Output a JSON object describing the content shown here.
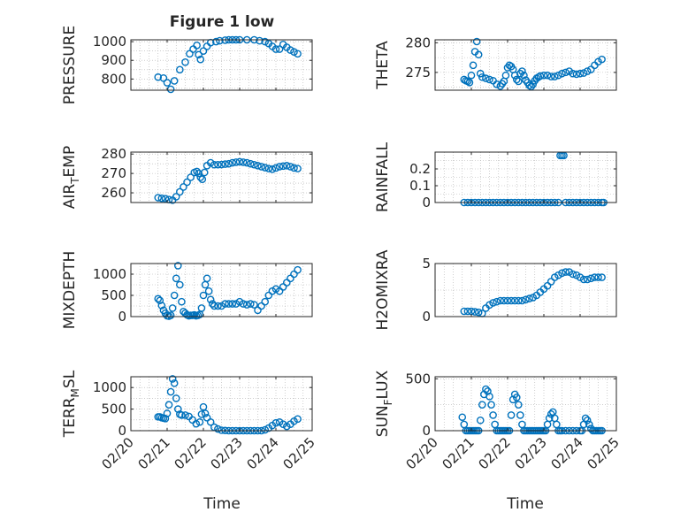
{
  "figure": {
    "title": "Figure 1 low",
    "xlabel_left": "Time",
    "xlabel_right": "Time",
    "colors": {
      "marker": "#0072BD",
      "axis": "#262626",
      "grid": "#b0b0b0",
      "background": "#ffffff"
    }
  },
  "chart_data": [
    {
      "type": "scatter",
      "ylabel": "PRESSURE",
      "xlim": [
        "02/20",
        "02/25"
      ],
      "ylim": [
        740,
        1010
      ],
      "yticks": [
        800,
        900,
        1000
      ],
      "xticks": [
        "02/20",
        "02/21",
        "02/22",
        "02/23",
        "02/24",
        "02/25"
      ],
      "series": [
        {
          "x": [
            20.75,
            20.9,
            21.0,
            21.1,
            21.2,
            21.35,
            21.5,
            21.62,
            21.72,
            21.82,
            21.87,
            21.92,
            22.0,
            22.1,
            22.2,
            22.35,
            22.45,
            22.6,
            22.7,
            22.8,
            22.9,
            23.0,
            23.2,
            23.4,
            23.55,
            23.7,
            23.8,
            23.9,
            24.0,
            24.1,
            24.2,
            24.3,
            24.4,
            24.5,
            24.6
          ],
          "y": [
            810,
            805,
            780,
            745,
            790,
            850,
            890,
            935,
            960,
            980,
            930,
            905,
            950,
            975,
            995,
            1000,
            1005,
            1008,
            1010,
            1010,
            1010,
            1010,
            1010,
            1010,
            1005,
            1000,
            990,
            975,
            960,
            960,
            985,
            970,
            955,
            945,
            935
          ]
        }
      ]
    },
    {
      "type": "scatter",
      "ylabel": "THETA",
      "xlim": [
        "02/20",
        "02/25"
      ],
      "ylim": [
        272,
        280.5
      ],
      "yticks": [
        275,
        280
      ],
      "xticks": [
        "02/20",
        "02/21",
        "02/22",
        "02/23",
        "02/24",
        "02/25"
      ],
      "series": [
        {
          "x": [
            20.8,
            20.85,
            20.9,
            20.95,
            21.0,
            21.05,
            21.1,
            21.15,
            21.2,
            21.25,
            21.3,
            21.4,
            21.5,
            21.6,
            21.7,
            21.8,
            21.85,
            21.9,
            21.95,
            22.0,
            22.05,
            22.1,
            22.15,
            22.2,
            22.25,
            22.3,
            22.35,
            22.4,
            22.45,
            22.5,
            22.55,
            22.6,
            22.65,
            22.7,
            22.75,
            22.8,
            22.85,
            22.9,
            23.0,
            23.1,
            23.2,
            23.3,
            23.4,
            23.5,
            23.6,
            23.7,
            23.8,
            23.9,
            24.0,
            24.1,
            24.2,
            24.3,
            24.4,
            24.5,
            24.6
          ],
          "y": [
            273.8,
            273.6,
            273.5,
            273.3,
            274.5,
            276.2,
            278.5,
            280.2,
            278.0,
            274.8,
            274.2,
            274.0,
            273.8,
            273.6,
            273.0,
            272.7,
            273.1,
            273.5,
            274.5,
            275.8,
            276.2,
            276.0,
            275.5,
            274.5,
            273.8,
            273.5,
            274.8,
            275.2,
            274.5,
            273.7,
            273.3,
            272.8,
            272.6,
            273.0,
            273.6,
            274.0,
            274.2,
            274.4,
            274.5,
            274.5,
            274.3,
            274.3,
            274.5,
            274.8,
            275.0,
            275.2,
            274.8,
            274.7,
            274.8,
            274.9,
            275.2,
            275.5,
            276.2,
            276.8,
            277.2
          ]
        }
      ]
    },
    {
      "type": "scatter",
      "ylabel": "AIR_TEMP",
      "xlim": [
        "02/20",
        "02/25"
      ],
      "ylim": [
        255,
        281
      ],
      "yticks": [
        260,
        270,
        280
      ],
      "xticks": [
        "02/20",
        "02/21",
        "02/22",
        "02/23",
        "02/24",
        "02/25"
      ],
      "series": [
        {
          "x": [
            20.75,
            20.85,
            20.95,
            21.05,
            21.15,
            21.25,
            21.35,
            21.45,
            21.55,
            21.65,
            21.75,
            21.82,
            21.87,
            21.92,
            21.97,
            22.03,
            22.1,
            22.2,
            22.3,
            22.4,
            22.5,
            22.6,
            22.7,
            22.8,
            22.9,
            23.0,
            23.1,
            23.2,
            23.3,
            23.4,
            23.5,
            23.6,
            23.7,
            23.8,
            23.9,
            24.0,
            24.1,
            24.2,
            24.3,
            24.4,
            24.5,
            24.6
          ],
          "y": [
            257.5,
            257.2,
            257.0,
            256.5,
            256.2,
            258.0,
            260.5,
            263.0,
            265.5,
            268.0,
            270.5,
            271.0,
            270.0,
            268.0,
            267.0,
            270.5,
            274.0,
            275.5,
            274.5,
            274.5,
            274.6,
            274.8,
            275.0,
            275.5,
            275.8,
            276.0,
            275.8,
            275.5,
            275.0,
            274.5,
            274.0,
            273.5,
            273.0,
            272.5,
            272.2,
            272.8,
            273.5,
            273.8,
            274.0,
            273.5,
            272.8,
            272.5
          ]
        }
      ]
    },
    {
      "type": "scatter",
      "ylabel": "RAINFALL",
      "xlim": [
        "02/20",
        "02/25"
      ],
      "ylim": [
        0,
        0.3
      ],
      "yticks": [
        0,
        0.1,
        0.2
      ],
      "xticks": [
        "02/20",
        "02/21",
        "02/22",
        "02/23",
        "02/24",
        "02/25"
      ],
      "series": [
        {
          "x": [
            20.8,
            20.9,
            21.0,
            21.1,
            21.2,
            21.3,
            21.4,
            21.5,
            21.6,
            21.7,
            21.8,
            21.9,
            22.0,
            22.1,
            22.2,
            22.3,
            22.4,
            22.5,
            22.6,
            22.7,
            22.8,
            22.9,
            23.0,
            23.1,
            23.2,
            23.3,
            23.4,
            23.45,
            23.5,
            23.55,
            23.6,
            23.7,
            23.8,
            23.9,
            24.0,
            24.1,
            24.2,
            24.3,
            24.4,
            24.5,
            24.6,
            24.65
          ],
          "y": [
            0,
            0,
            0,
            0,
            0,
            0,
            0,
            0,
            0,
            0,
            0,
            0,
            0,
            0,
            0,
            0,
            0,
            0,
            0,
            0,
            0,
            0,
            0,
            0,
            0,
            0,
            0,
            0.28,
            0.28,
            0.28,
            0,
            0,
            0,
            0,
            0,
            0,
            0,
            0,
            0,
            0,
            0,
            0
          ]
        }
      ]
    },
    {
      "type": "scatter",
      "ylabel": "MIXDEPTH",
      "xlim": [
        "02/20",
        "02/25"
      ],
      "ylim": [
        0,
        1250
      ],
      "yticks": [
        0,
        500,
        1000
      ],
      "xticks": [
        "02/20",
        "02/21",
        "02/22",
        "02/23",
        "02/24",
        "02/25"
      ],
      "series": [
        {
          "x": [
            20.75,
            20.8,
            20.85,
            20.9,
            20.95,
            21.0,
            21.05,
            21.1,
            21.15,
            21.2,
            21.25,
            21.3,
            21.35,
            21.4,
            21.45,
            21.5,
            21.55,
            21.6,
            21.65,
            21.7,
            21.75,
            21.8,
            21.85,
            21.9,
            21.95,
            22.0,
            22.05,
            22.1,
            22.15,
            22.2,
            22.25,
            22.3,
            22.4,
            22.5,
            22.6,
            22.7,
            22.8,
            22.9,
            23.0,
            23.1,
            23.2,
            23.3,
            23.4,
            23.5,
            23.6,
            23.7,
            23.8,
            23.9,
            24.0,
            24.1,
            24.2,
            24.3,
            24.4,
            24.5,
            24.6
          ],
          "y": [
            420,
            380,
            260,
            150,
            80,
            20,
            10,
            30,
            200,
            500,
            900,
            1200,
            750,
            350,
            120,
            80,
            40,
            20,
            30,
            30,
            40,
            20,
            30,
            50,
            200,
            500,
            750,
            900,
            600,
            400,
            300,
            250,
            250,
            250,
            300,
            300,
            300,
            300,
            350,
            300,
            280,
            300,
            280,
            150,
            250,
            350,
            500,
            600,
            650,
            600,
            700,
            800,
            900,
            1000,
            1100
          ]
        }
      ]
    },
    {
      "type": "scatter",
      "ylabel": "H2OMIXRA",
      "xlim": [
        "02/20",
        "02/25"
      ],
      "ylim": [
        0,
        5
      ],
      "yticks": [
        0,
        5
      ],
      "xticks": [
        "02/20",
        "02/21",
        "02/22",
        "02/23",
        "02/24",
        "02/25"
      ],
      "series": [
        {
          "x": [
            20.8,
            20.9,
            21.0,
            21.1,
            21.2,
            21.3,
            21.4,
            21.5,
            21.6,
            21.7,
            21.8,
            21.9,
            22.0,
            22.1,
            22.2,
            22.3,
            22.4,
            22.5,
            22.6,
            22.7,
            22.8,
            22.9,
            23.0,
            23.1,
            23.2,
            23.3,
            23.4,
            23.5,
            23.6,
            23.7,
            23.8,
            23.9,
            24.0,
            24.1,
            24.2,
            24.3,
            24.4,
            24.5,
            24.6
          ],
          "y": [
            0.5,
            0.5,
            0.5,
            0.45,
            0.4,
            0.3,
            0.8,
            1.1,
            1.3,
            1.4,
            1.5,
            1.5,
            1.5,
            1.5,
            1.5,
            1.5,
            1.5,
            1.6,
            1.7,
            1.8,
            2.0,
            2.3,
            2.6,
            2.9,
            3.3,
            3.7,
            3.9,
            4.1,
            4.2,
            4.2,
            4.0,
            3.9,
            3.7,
            3.5,
            3.5,
            3.6,
            3.7,
            3.7,
            3.7
          ]
        }
      ]
    },
    {
      "type": "scatter",
      "ylabel": "TERR_MSL",
      "xlim": [
        "02/20",
        "02/25"
      ],
      "ylim": [
        0,
        1250
      ],
      "yticks": [
        0,
        500,
        1000
      ],
      "xticks": [
        "02/20",
        "02/21",
        "02/22",
        "02/23",
        "02/24",
        "02/25"
      ],
      "series": [
        {
          "x": [
            20.75,
            20.8,
            20.85,
            20.9,
            20.95,
            21.0,
            21.05,
            21.1,
            21.15,
            21.2,
            21.25,
            21.3,
            21.35,
            21.4,
            21.5,
            21.6,
            21.7,
            21.8,
            21.9,
            21.95,
            22.0,
            22.05,
            22.1,
            22.2,
            22.3,
            22.4,
            22.5,
            22.6,
            22.7,
            22.8,
            22.9,
            23.0,
            23.1,
            23.2,
            23.3,
            23.4,
            23.5,
            23.6,
            23.7,
            23.8,
            23.9,
            24.0,
            24.1,
            24.2,
            24.3,
            24.4,
            24.5,
            24.6
          ],
          "y": [
            320,
            320,
            300,
            290,
            280,
            400,
            600,
            900,
            1200,
            1100,
            750,
            500,
            380,
            360,
            360,
            330,
            250,
            160,
            200,
            380,
            550,
            400,
            300,
            200,
            80,
            40,
            10,
            5,
            0,
            0,
            0,
            0,
            0,
            0,
            0,
            0,
            0,
            0,
            20,
            60,
            120,
            180,
            200,
            150,
            100,
            150,
            220,
            270
          ]
        }
      ]
    },
    {
      "type": "scatter",
      "ylabel": "SUN_FLUX",
      "xlim": [
        "02/20",
        "02/25"
      ],
      "ylim": [
        0,
        520
      ],
      "yticks": [
        0,
        500
      ],
      "xticks": [
        "02/20",
        "02/21",
        "02/22",
        "02/23",
        "02/24",
        "02/25"
      ],
      "series": [
        {
          "x": [
            20.75,
            20.8,
            20.85,
            20.9,
            20.95,
            21.0,
            21.05,
            21.1,
            21.15,
            21.2,
            21.25,
            21.3,
            21.35,
            21.4,
            21.45,
            21.5,
            21.55,
            21.6,
            21.65,
            21.7,
            21.75,
            21.8,
            21.85,
            21.9,
            21.95,
            22.0,
            22.05,
            22.1,
            22.15,
            22.2,
            22.25,
            22.3,
            22.35,
            22.4,
            22.45,
            22.5,
            22.55,
            22.6,
            22.65,
            22.7,
            22.75,
            22.8,
            22.85,
            22.9,
            22.95,
            23.0,
            23.05,
            23.1,
            23.15,
            23.2,
            23.25,
            23.3,
            23.35,
            23.4,
            23.45,
            23.5,
            23.6,
            23.7,
            23.8,
            23.9,
            24.0,
            24.05,
            24.1,
            24.15,
            24.2,
            24.25,
            24.3,
            24.35,
            24.4,
            24.45,
            24.5,
            24.55,
            24.6
          ],
          "y": [
            130,
            60,
            0,
            0,
            0,
            0,
            0,
            0,
            0,
            0,
            100,
            250,
            350,
            400,
            380,
            330,
            250,
            150,
            60,
            0,
            0,
            0,
            0,
            0,
            0,
            0,
            0,
            150,
            300,
            350,
            320,
            250,
            150,
            60,
            0,
            0,
            0,
            0,
            0,
            0,
            0,
            0,
            0,
            0,
            0,
            0,
            0,
            60,
            120,
            160,
            180,
            120,
            60,
            0,
            0,
            0,
            0,
            0,
            0,
            0,
            0,
            0,
            60,
            120,
            100,
            60,
            20,
            0,
            0,
            0,
            0,
            0,
            0
          ]
        }
      ]
    }
  ]
}
